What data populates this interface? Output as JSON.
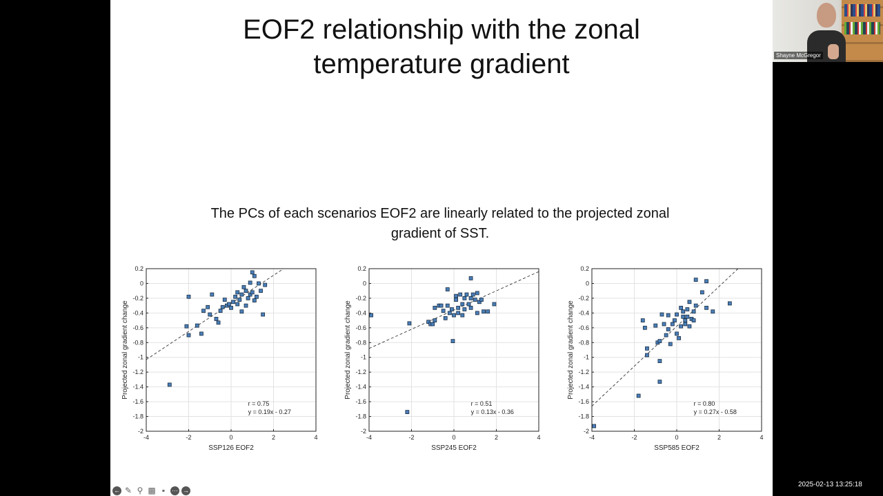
{
  "slide": {
    "title_line1": "EOF2 relationship with the zonal",
    "title_line2": "temperature gradient",
    "subtitle_line1": "The PCs of each scenarios EOF2 are linearly related to the projected zonal",
    "subtitle_line2": "gradient of SST."
  },
  "chart_data": [
    {
      "type": "scatter",
      "xlabel": "SSP126 EOF2",
      "ylabel": "Projected zonal gradient change",
      "xlim": [
        -4,
        4
      ],
      "ylim": [
        -2,
        0.2
      ],
      "xticks": [
        -4,
        -2,
        0,
        2,
        4
      ],
      "yticks": [
        0.2,
        0,
        -0.2,
        -0.4,
        -0.6,
        -0.8,
        -1,
        -1.2,
        -1.4,
        -1.6,
        -1.8,
        -2
      ],
      "grid": true,
      "annotation_r": "r = 0.75",
      "annotation_eq": "y = 0.19x - 0.27",
      "fit": {
        "slope": 0.19,
        "intercept": -0.27
      },
      "points": [
        [
          -2.9,
          -1.37
        ],
        [
          -2.1,
          -0.58
        ],
        [
          -2.0,
          -0.7
        ],
        [
          -2.0,
          -0.18
        ],
        [
          -1.6,
          -0.57
        ],
        [
          -1.4,
          -0.68
        ],
        [
          -1.3,
          -0.37
        ],
        [
          -1.1,
          -0.32
        ],
        [
          -1.0,
          -0.42
        ],
        [
          -0.9,
          -0.15
        ],
        [
          -0.7,
          -0.48
        ],
        [
          -0.6,
          -0.53
        ],
        [
          -0.5,
          -0.37
        ],
        [
          -0.4,
          -0.32
        ],
        [
          -0.3,
          -0.22
        ],
        [
          -0.2,
          -0.3
        ],
        [
          -0.1,
          -0.28
        ],
        [
          0.0,
          -0.33
        ],
        [
          0.1,
          -0.25
        ],
        [
          0.2,
          -0.18
        ],
        [
          0.3,
          -0.28
        ],
        [
          0.3,
          -0.12
        ],
        [
          0.4,
          -0.22
        ],
        [
          0.5,
          -0.38
        ],
        [
          0.5,
          -0.15
        ],
        [
          0.6,
          -0.05
        ],
        [
          0.7,
          -0.3
        ],
        [
          0.7,
          -0.1
        ],
        [
          0.8,
          -0.2
        ],
        [
          0.9,
          -0.15
        ],
        [
          0.9,
          0.01
        ],
        [
          1.0,
          0.15
        ],
        [
          1.0,
          -0.12
        ],
        [
          1.1,
          0.1
        ],
        [
          1.1,
          -0.23
        ],
        [
          1.2,
          -0.18
        ],
        [
          1.3,
          0.0
        ],
        [
          1.4,
          -0.1
        ],
        [
          1.5,
          -0.42
        ],
        [
          1.6,
          -0.02
        ]
      ]
    },
    {
      "type": "scatter",
      "xlabel": "SSP245 EOF2",
      "ylabel": "Projected zonal gradient change",
      "xlim": [
        -4,
        4
      ],
      "ylim": [
        -2,
        0.2
      ],
      "xticks": [
        -4,
        -2,
        0,
        2,
        4
      ],
      "yticks": [
        0.2,
        0,
        -0.2,
        -0.4,
        -0.6,
        -0.8,
        -1,
        -1.2,
        -1.4,
        -1.6,
        -1.8,
        -2
      ],
      "grid": true,
      "annotation_r": "r = 0.51",
      "annotation_eq": "y = 0.13x - 0.36",
      "fit": {
        "slope": 0.13,
        "intercept": -0.36
      },
      "points": [
        [
          -3.9,
          -0.43
        ],
        [
          -2.2,
          -1.74
        ],
        [
          -2.1,
          -0.54
        ],
        [
          -1.2,
          -0.52
        ],
        [
          -1.1,
          -0.55
        ],
        [
          -1.0,
          -0.55
        ],
        [
          -0.9,
          -0.5
        ],
        [
          -0.9,
          -0.33
        ],
        [
          -0.7,
          -0.3
        ],
        [
          -0.6,
          -0.3
        ],
        [
          -0.5,
          -0.37
        ],
        [
          -0.4,
          -0.47
        ],
        [
          -0.3,
          -0.08
        ],
        [
          -0.3,
          -0.3
        ],
        [
          -0.2,
          -0.4
        ],
        [
          -0.1,
          -0.35
        ],
        [
          -0.05,
          -0.78
        ],
        [
          0.0,
          -0.43
        ],
        [
          0.1,
          -0.22
        ],
        [
          0.1,
          -0.17
        ],
        [
          0.2,
          -0.33
        ],
        [
          0.2,
          -0.4
        ],
        [
          0.3,
          -0.15
        ],
        [
          0.4,
          -0.28
        ],
        [
          0.4,
          -0.43
        ],
        [
          0.5,
          -0.2
        ],
        [
          0.5,
          -0.35
        ],
        [
          0.6,
          -0.15
        ],
        [
          0.7,
          -0.28
        ],
        [
          0.8,
          -0.33
        ],
        [
          0.8,
          -0.2
        ],
        [
          0.8,
          0.07
        ],
        [
          0.9,
          -0.15
        ],
        [
          1.0,
          -0.22
        ],
        [
          1.1,
          -0.4
        ],
        [
          1.1,
          -0.13
        ],
        [
          1.2,
          -0.25
        ],
        [
          1.3,
          -0.22
        ],
        [
          1.4,
          -0.38
        ],
        [
          1.6,
          -0.38
        ],
        [
          1.9,
          -0.28
        ]
      ]
    },
    {
      "type": "scatter",
      "xlabel": "SSP585 EOF2",
      "ylabel": "Projected zonal gradient change",
      "xlim": [
        -4,
        4
      ],
      "ylim": [
        -2,
        0.2
      ],
      "xticks": [
        -4,
        -2,
        0,
        2,
        4
      ],
      "yticks": [
        0.2,
        0,
        -0.2,
        -0.4,
        -0.6,
        -0.8,
        -1,
        -1.2,
        -1.4,
        -1.6,
        -1.8,
        -2
      ],
      "grid": true,
      "annotation_r": "r = 0.80",
      "annotation_eq": "y = 0.27x - 0.58",
      "fit": {
        "slope": 0.27,
        "intercept": -0.58
      },
      "points": [
        [
          -3.9,
          -1.93
        ],
        [
          -1.8,
          -1.52
        ],
        [
          -1.6,
          -0.5
        ],
        [
          -1.5,
          -0.6
        ],
        [
          -1.4,
          -0.97
        ],
        [
          -1.4,
          -0.88
        ],
        [
          -1.0,
          -0.57
        ],
        [
          -0.9,
          -0.8
        ],
        [
          -0.8,
          -0.78
        ],
        [
          -0.8,
          -1.05
        ],
        [
          -0.8,
          -1.33
        ],
        [
          -0.7,
          -0.42
        ],
        [
          -0.6,
          -0.55
        ],
        [
          -0.5,
          -0.7
        ],
        [
          -0.4,
          -0.43
        ],
        [
          -0.4,
          -0.62
        ],
        [
          -0.3,
          -0.82
        ],
        [
          -0.2,
          -0.55
        ],
        [
          -0.1,
          -0.5
        ],
        [
          0.0,
          -0.68
        ],
        [
          0.0,
          -0.42
        ],
        [
          0.1,
          -0.74
        ],
        [
          0.2,
          -0.33
        ],
        [
          0.2,
          -0.58
        ],
        [
          0.3,
          -0.45
        ],
        [
          0.3,
          -0.38
        ],
        [
          0.4,
          -0.55
        ],
        [
          0.4,
          -0.5
        ],
        [
          0.5,
          -0.35
        ],
        [
          0.5,
          -0.45
        ],
        [
          0.6,
          -0.25
        ],
        [
          0.6,
          -0.58
        ],
        [
          0.7,
          -0.48
        ],
        [
          0.8,
          -0.38
        ],
        [
          0.8,
          -0.5
        ],
        [
          0.9,
          -0.3
        ],
        [
          0.9,
          0.05
        ],
        [
          1.2,
          -0.12
        ],
        [
          1.4,
          -0.33
        ],
        [
          1.4,
          0.03
        ],
        [
          1.7,
          -0.38
        ],
        [
          2.5,
          -0.27
        ]
      ]
    }
  ],
  "toolbar": {
    "icons": [
      "back-arrow-icon",
      "pen-icon",
      "zoom-icon",
      "captions-icon",
      "video-icon",
      "more-icon",
      "forward-arrow-icon"
    ]
  },
  "webcam": {
    "name": "Shayne McGregor"
  },
  "timestamp": "2025-02-13  13:25:18"
}
